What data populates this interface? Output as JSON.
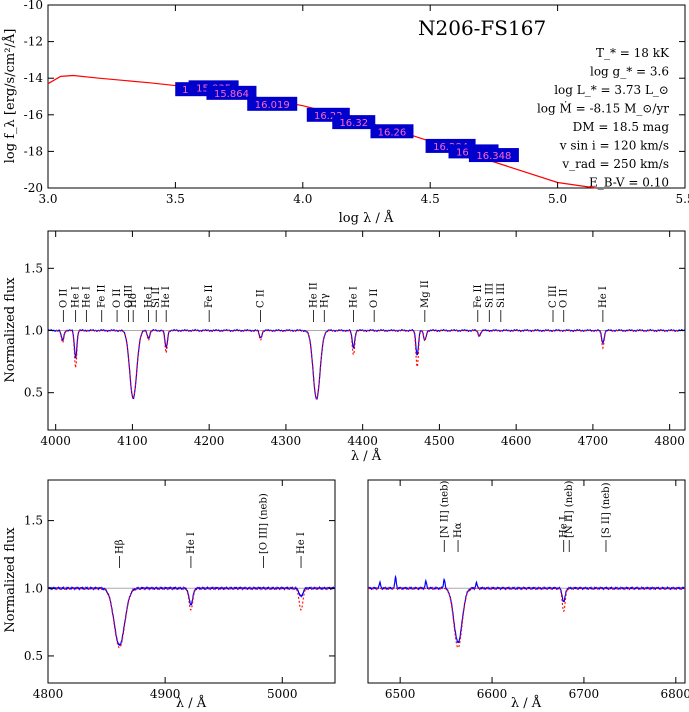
{
  "chart_data": [
    {
      "type": "line",
      "title": "N206-FS167",
      "xlabel": "log λ / Å",
      "ylabel": "log f_λ [erg/s/cm²/Å]",
      "xlim": [
        3.0,
        5.5
      ],
      "ylim": [
        -20,
        -10
      ],
      "xticks": [
        "3.0",
        "3.5",
        "4.0",
        "4.5",
        "5.0",
        "5.5"
      ],
      "yticks": [
        "-10",
        "-12",
        "-14",
        "-16",
        "-18",
        "-20"
      ],
      "grid": false,
      "params": [
        "T_* = 18 kK",
        "log g_* = 3.6",
        "log L_* = 3.73 L_⊙",
        "log Ṁ = -8.15 M_⊙/yr",
        "DM = 18.5 mag",
        "v sin i = 120 km/s",
        "v_rad = 250 km/s",
        "E_B-V = 0.10"
      ],
      "series": [
        {
          "color": "#ff0000",
          "x": [
            3.0,
            3.05,
            3.1,
            3.2,
            3.4,
            3.6,
            3.8,
            4.0,
            4.2,
            4.4,
            4.6,
            4.8,
            5.0,
            5.15
          ],
          "y": [
            -14.3,
            -13.9,
            -13.85,
            -14.0,
            -14.25,
            -14.55,
            -15.0,
            -15.5,
            -16.2,
            -17.0,
            -17.9,
            -18.8,
            -19.7,
            -20.0
          ]
        }
      ],
      "photometry": [
        {
          "x": 3.57,
          "y": -14.6,
          "label": "15.8"
        },
        {
          "x": 3.65,
          "y": -14.5,
          "label": "15.835"
        },
        {
          "x": 3.72,
          "y": -14.8,
          "label": "15.864"
        },
        {
          "x": 3.88,
          "y": -15.4,
          "label": "16.019"
        },
        {
          "x": 4.1,
          "y": -16.0,
          "label": "16.22"
        },
        {
          "x": 4.2,
          "y": -16.4,
          "label": "16.32"
        },
        {
          "x": 4.35,
          "y": -16.9,
          "label": "16.26"
        },
        {
          "x": 4.58,
          "y": -17.7,
          "label": "16.284"
        },
        {
          "x": 4.67,
          "y": -18.0,
          "label": "16.348"
        },
        {
          "x": 4.75,
          "y": -18.2,
          "label": "16.348"
        }
      ]
    },
    {
      "type": "line",
      "xlabel": "λ / Å",
      "ylabel": "Normalized flux",
      "xlim": [
        3990,
        4820
      ],
      "ylim": [
        0.2,
        1.8
      ],
      "xticks": [
        "4000",
        "4100",
        "4200",
        "4300",
        "4400",
        "4500",
        "4600",
        "4700",
        "4800"
      ],
      "yticks": [
        "0.5",
        "1.0",
        "1.5"
      ],
      "grid": false,
      "lines": [
        {
          "x": 4010,
          "label": "O II"
        },
        {
          "x": 4026,
          "label": "He I"
        },
        {
          "x": 4040,
          "label": "He I"
        },
        {
          "x": 4060,
          "label": "Fe II"
        },
        {
          "x": 4080,
          "label": "O II"
        },
        {
          "x": 4095,
          "label": "O III"
        },
        {
          "x": 4101,
          "label": "Hδ"
        },
        {
          "x": 4121,
          "label": "He I"
        },
        {
          "x": 4131,
          "label": "Si II"
        },
        {
          "x": 4144,
          "label": "He I"
        },
        {
          "x": 4200,
          "label": "Fe II"
        },
        {
          "x": 4267,
          "label": "C II"
        },
        {
          "x": 4336,
          "label": "He II"
        },
        {
          "x": 4350,
          "label": "Hγ"
        },
        {
          "x": 4388,
          "label": "He I"
        },
        {
          "x": 4415,
          "label": "O II"
        },
        {
          "x": 4481,
          "label": "Mg II"
        },
        {
          "x": 4550,
          "label": "Fe II"
        },
        {
          "x": 4565,
          "label": "Si III"
        },
        {
          "x": 4580,
          "label": "Si III"
        },
        {
          "x": 4648,
          "label": "C III"
        },
        {
          "x": 4662,
          "label": "O II"
        },
        {
          "x": 4713,
          "label": "He I"
        }
      ],
      "series": [
        {
          "color": "#0000ff",
          "absorptions": [
            [
              4009,
              0.08
            ],
            [
              4026,
              0.22
            ],
            [
              4101,
              0.55
            ],
            [
              4121,
              0.06
            ],
            [
              4144,
              0.14
            ],
            [
              4267,
              0.06
            ],
            [
              4340,
              0.55
            ],
            [
              4388,
              0.14
            ],
            [
              4471,
              0.2
            ],
            [
              4481,
              0.08
            ],
            [
              4552,
              0.04
            ],
            [
              4713,
              0.1
            ]
          ]
        },
        {
          "color": "#ff0000",
          "dashed": true,
          "absorptions": [
            [
              4009,
              0.1
            ],
            [
              4026,
              0.3
            ],
            [
              4101,
              0.54
            ],
            [
              4121,
              0.08
            ],
            [
              4144,
              0.18
            ],
            [
              4267,
              0.08
            ],
            [
              4340,
              0.55
            ],
            [
              4388,
              0.2
            ],
            [
              4471,
              0.3
            ],
            [
              4481,
              0.08
            ],
            [
              4552,
              0.05
            ],
            [
              4713,
              0.14
            ]
          ]
        }
      ]
    },
    {
      "type": "line",
      "xlabel": "λ / Å",
      "ylabel": "Normalized flux",
      "xlim": [
        4800,
        5045
      ],
      "ylim": [
        0.3,
        1.8
      ],
      "xticks": [
        "4800",
        "4900",
        "5000"
      ],
      "yticks": [
        "0.5",
        "1.0",
        "1.5"
      ],
      "grid": false,
      "lines": [
        {
          "x": 4861,
          "label": "Hβ"
        },
        {
          "x": 4922,
          "label": "He I"
        },
        {
          "x": 4984,
          "label": "[O III] (neb)"
        },
        {
          "x": 5016,
          "label": "He I"
        }
      ],
      "series": [
        {
          "color": "#0000ff",
          "absorptions": [
            [
              4861,
              0.42
            ],
            [
              4922,
              0.12
            ],
            [
              5016,
              0.06
            ]
          ]
        },
        {
          "color": "#ff0000",
          "dashed": true,
          "absorptions": [
            [
              4861,
              0.44
            ],
            [
              4922,
              0.16
            ],
            [
              5016,
              0.16
            ]
          ]
        }
      ]
    },
    {
      "type": "line",
      "xlabel": "λ / Å",
      "ylim": [
        0.3,
        1.8
      ],
      "xlim": [
        6465,
        6810
      ],
      "xticks": [
        "6500",
        "6600",
        "6700",
        "6800"
      ],
      "grid": false,
      "lines": [
        {
          "x": 6548,
          "label": "[N II] (neb)"
        },
        {
          "x": 6563,
          "label": "Hα"
        },
        {
          "x": 6678,
          "label": "He I"
        },
        {
          "x": 6684,
          "label": "[N II] (neb)"
        },
        {
          "x": 6724,
          "label": "[S II] (neb)"
        }
      ],
      "series": [
        {
          "color": "#0000ff",
          "absorptions": [
            [
              6563,
              0.4
            ],
            [
              6678,
              0.1
            ]
          ],
          "emissions": [
            [
              6478,
              0.04
            ],
            [
              6495,
              0.08
            ],
            [
              6528,
              0.05
            ],
            [
              6548,
              0.07
            ],
            [
              6583,
              0.04
            ]
          ]
        },
        {
          "color": "#ff0000",
          "dashed": true,
          "absorptions": [
            [
              6563,
              0.44
            ],
            [
              6678,
              0.17
            ]
          ]
        }
      ]
    }
  ]
}
